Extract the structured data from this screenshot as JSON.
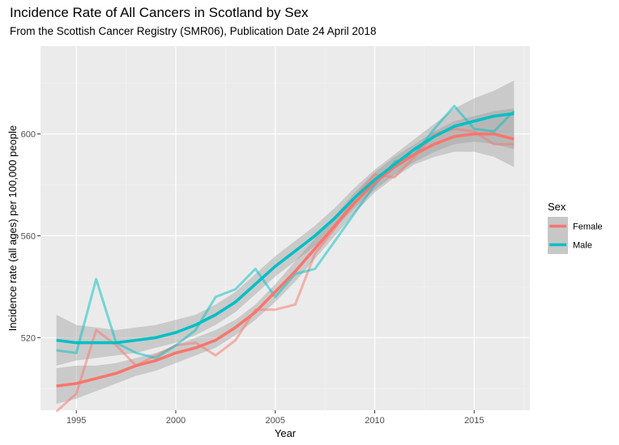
{
  "title": "Incidence Rate of All Cancers in Scotland by Sex",
  "subtitle": "From the Scottish Cancer Registry (SMR06), Publication Date 24 April 2018",
  "chart_data": {
    "type": "line",
    "xlabel": "Year",
    "ylabel": "Incidence rate (all ages) per 100,000 people",
    "x_ticks": [
      1995,
      2000,
      2005,
      2010,
      2015
    ],
    "y_ticks": [
      520,
      560,
      600
    ],
    "xlim": [
      1993.2,
      2017.8
    ],
    "ylim": [
      491.5,
      634.5
    ],
    "grid": true,
    "legend_title": "Sex",
    "legend_position": "right",
    "x": [
      1994,
      1995,
      1996,
      1997,
      1998,
      1999,
      2000,
      2001,
      2002,
      2003,
      2004,
      2005,
      2006,
      2007,
      2008,
      2009,
      2010,
      2011,
      2012,
      2013,
      2014,
      2015,
      2016,
      2017
    ],
    "series": [
      {
        "name": "Female",
        "color": "#F8766D",
        "values": [
          491,
          498,
          523,
          517,
          509,
          513,
          517,
          518,
          513,
          519,
          531,
          531,
          533,
          553,
          563,
          575,
          584,
          583,
          591,
          600,
          602,
          601,
          596,
          596
        ],
        "smooth": [
          501,
          502,
          504,
          506,
          509,
          511,
          514,
          516,
          519,
          524,
          530,
          538,
          546,
          555,
          564,
          573,
          581,
          587,
          592,
          596,
          599,
          600,
          600,
          598
        ],
        "band_lower": [
          494,
          496,
          499,
          502,
          505,
          507,
          510,
          513,
          516,
          521,
          527,
          534,
          542,
          551,
          560,
          569,
          577,
          583,
          588,
          591,
          593,
          593,
          591,
          587
        ],
        "band_upper": [
          508,
          509,
          509,
          510,
          512,
          514,
          517,
          520,
          523,
          527,
          533,
          541,
          550,
          559,
          568,
          577,
          585,
          591,
          596,
          601,
          605,
          607,
          609,
          610
        ]
      },
      {
        "name": "Male",
        "color": "#00BFC4",
        "values": [
          515,
          514,
          543,
          518,
          514,
          512,
          517,
          523,
          536,
          539,
          547,
          536,
          545,
          547,
          558,
          569,
          580,
          589,
          592,
          602,
          611,
          602,
          601,
          609
        ],
        "smooth": [
          519,
          518,
          518,
          518,
          519,
          520,
          522,
          525,
          529,
          534,
          541,
          548,
          554,
          560,
          567,
          575,
          582,
          588,
          594,
          599,
          603,
          605,
          607,
          608
        ],
        "band_lower": [
          509,
          511,
          512,
          513,
          514,
          516,
          518,
          521,
          525,
          530,
          537,
          544,
          550,
          556,
          563,
          571,
          578,
          584,
          589,
          593,
          596,
          597,
          596,
          594
        ],
        "band_upper": [
          529,
          525,
          524,
          523,
          524,
          525,
          527,
          529,
          533,
          538,
          545,
          552,
          558,
          564,
          571,
          579,
          586,
          592,
          598,
          604,
          610,
          614,
          617,
          621
        ]
      }
    ]
  }
}
